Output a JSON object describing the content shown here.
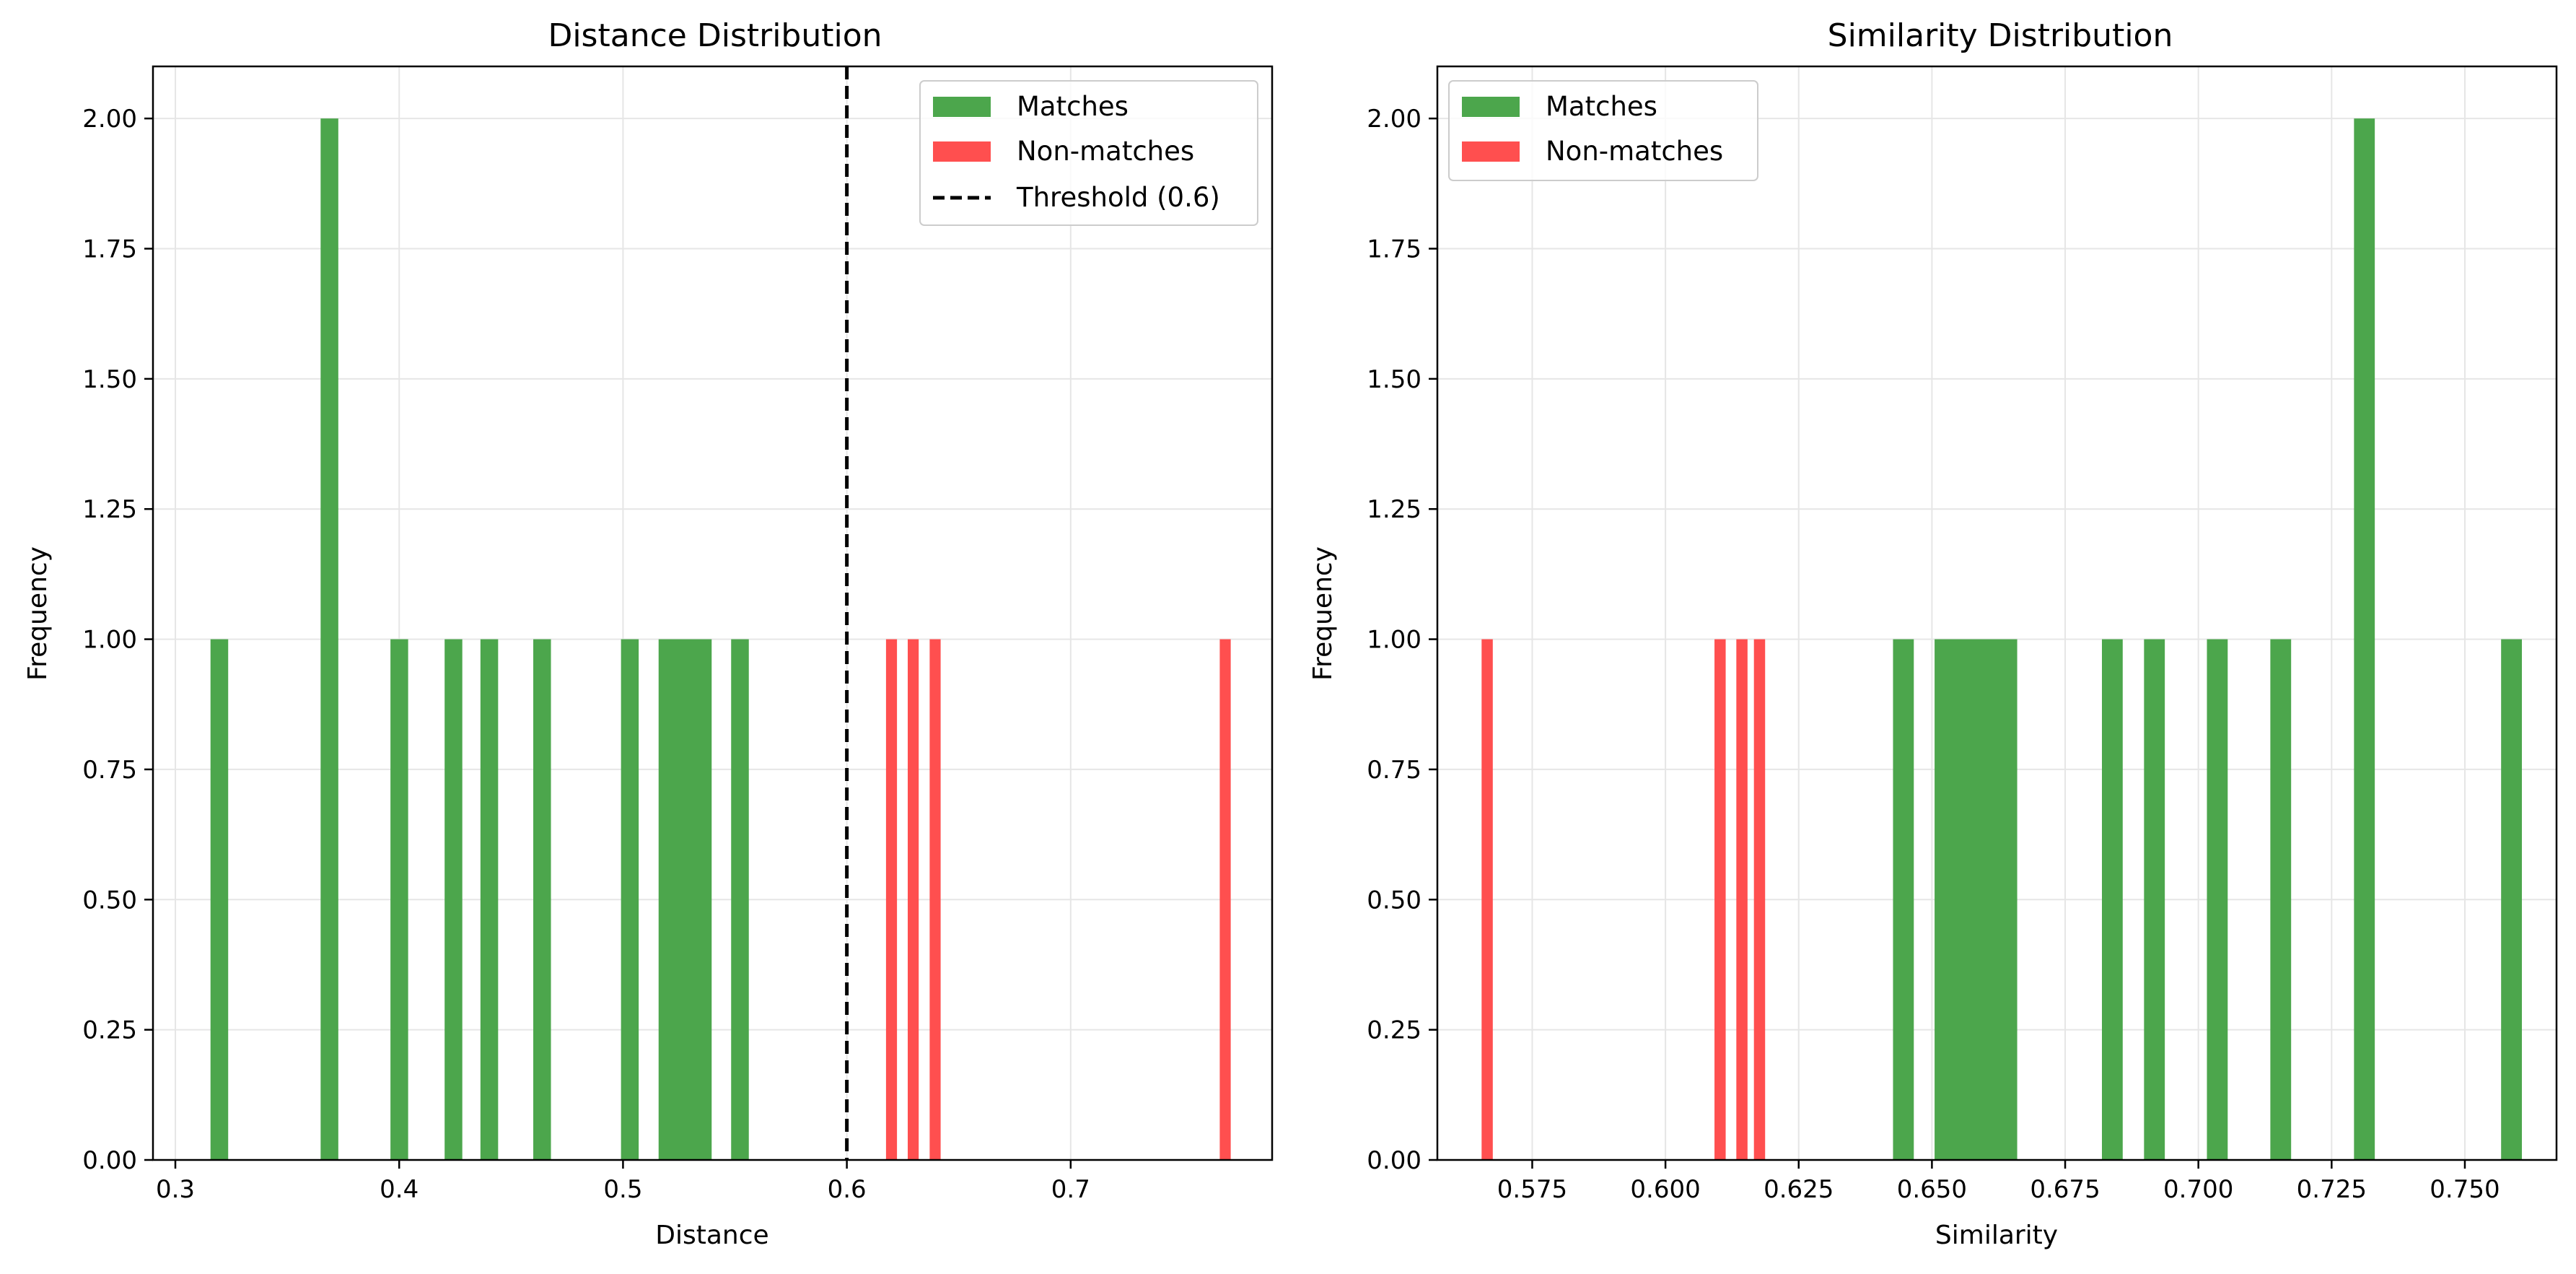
{
  "colors": {
    "matches": "#4ca64c",
    "non_matches": "#ff4f4f",
    "threshold": "#000000",
    "grid": "#e6e6e6",
    "axes": "#000000",
    "background": "#ffffff"
  },
  "chart_data": [
    {
      "type": "bar",
      "title": "Distance Distribution",
      "xlabel": "Distance",
      "ylabel": "Frequency",
      "xlim": [
        0.29,
        0.79
      ],
      "ylim": [
        0,
        2.1
      ],
      "xticks": [
        0.3,
        0.4,
        0.5,
        0.6,
        0.7
      ],
      "xtick_labels": [
        "0.3",
        "0.4",
        "0.5",
        "0.6",
        "0.7"
      ],
      "yticks": [
        0,
        0.25,
        0.5,
        0.75,
        1.0,
        1.25,
        1.5,
        1.75,
        2.0
      ],
      "ytick_labels": [
        "0.00",
        "0.25",
        "0.50",
        "0.75",
        "1.00",
        "1.25",
        "1.50",
        "1.75",
        "2.00"
      ],
      "grid": true,
      "legend_position": "top-right",
      "legend": [
        "Matches",
        "Non-matches",
        "Threshold (0.6)"
      ],
      "threshold": 0.6,
      "series": [
        {
          "name": "Matches",
          "color": "#4ca64c",
          "bins": [
            {
              "x0": 0.3157,
              "x1": 0.3236,
              "count": 1
            },
            {
              "x0": 0.3649,
              "x1": 0.3728,
              "count": 2
            },
            {
              "x0": 0.3961,
              "x1": 0.404,
              "count": 1
            },
            {
              "x0": 0.4203,
              "x1": 0.4282,
              "count": 1
            },
            {
              "x0": 0.4363,
              "x1": 0.4442,
              "count": 1
            },
            {
              "x0": 0.4599,
              "x1": 0.4678,
              "count": 1
            },
            {
              "x0": 0.4991,
              "x1": 0.507,
              "count": 1
            },
            {
              "x0": 0.5159,
              "x1": 0.5396,
              "count": 1
            },
            {
              "x0": 0.5483,
              "x1": 0.5562,
              "count": 1
            }
          ]
        },
        {
          "name": "Non-matches",
          "color": "#ff4f4f",
          "bins": [
            {
              "x0": 0.6175,
              "x1": 0.6224,
              "count": 1
            },
            {
              "x0": 0.6272,
              "x1": 0.6321,
              "count": 1
            },
            {
              "x0": 0.637,
              "x1": 0.6419,
              "count": 1
            },
            {
              "x0": 0.7666,
              "x1": 0.7715,
              "count": 1
            }
          ]
        }
      ]
    },
    {
      "type": "bar",
      "title": "Similarity Distribution",
      "xlabel": "Similarity",
      "ylabel": "Frequency",
      "xlim": [
        0.5572,
        0.7672
      ],
      "ylim": [
        0,
        2.1
      ],
      "xticks": [
        0.575,
        0.6,
        0.625,
        0.65,
        0.675,
        0.7,
        0.725,
        0.75
      ],
      "xtick_labels": [
        "0.575",
        "0.600",
        "0.625",
        "0.650",
        "0.675",
        "0.700",
        "0.725",
        "0.750"
      ],
      "yticks": [
        0,
        0.25,
        0.5,
        0.75,
        1.0,
        1.25,
        1.5,
        1.75,
        2.0
      ],
      "ytick_labels": [
        "0.00",
        "0.25",
        "0.50",
        "0.75",
        "1.00",
        "1.25",
        "1.50",
        "1.75",
        "2.00"
      ],
      "grid": true,
      "legend_position": "top-left",
      "legend": [
        "Matches",
        "Non-matches"
      ],
      "series": [
        {
          "name": "Matches",
          "color": "#4ca64c",
          "bins": [
            {
              "x0": 0.6427,
              "x1": 0.6466,
              "count": 1
            },
            {
              "x0": 0.6505,
              "x1": 0.666,
              "count": 1
            },
            {
              "x0": 0.6819,
              "x1": 0.6858,
              "count": 1
            },
            {
              "x0": 0.6898,
              "x1": 0.6937,
              "count": 1
            },
            {
              "x0": 0.7016,
              "x1": 0.7055,
              "count": 1
            },
            {
              "x0": 0.7135,
              "x1": 0.7174,
              "count": 1
            },
            {
              "x0": 0.7292,
              "x1": 0.7331,
              "count": 2
            },
            {
              "x0": 0.7568,
              "x1": 0.7607,
              "count": 1
            }
          ]
        },
        {
          "name": "Non-matches",
          "color": "#ff4f4f",
          "bins": [
            {
              "x0": 0.5655,
              "x1": 0.5676,
              "count": 1
            },
            {
              "x0": 0.6092,
              "x1": 0.6113,
              "count": 1
            },
            {
              "x0": 0.6133,
              "x1": 0.6154,
              "count": 1
            },
            {
              "x0": 0.6166,
              "x1": 0.6187,
              "count": 1
            }
          ]
        }
      ]
    }
  ]
}
